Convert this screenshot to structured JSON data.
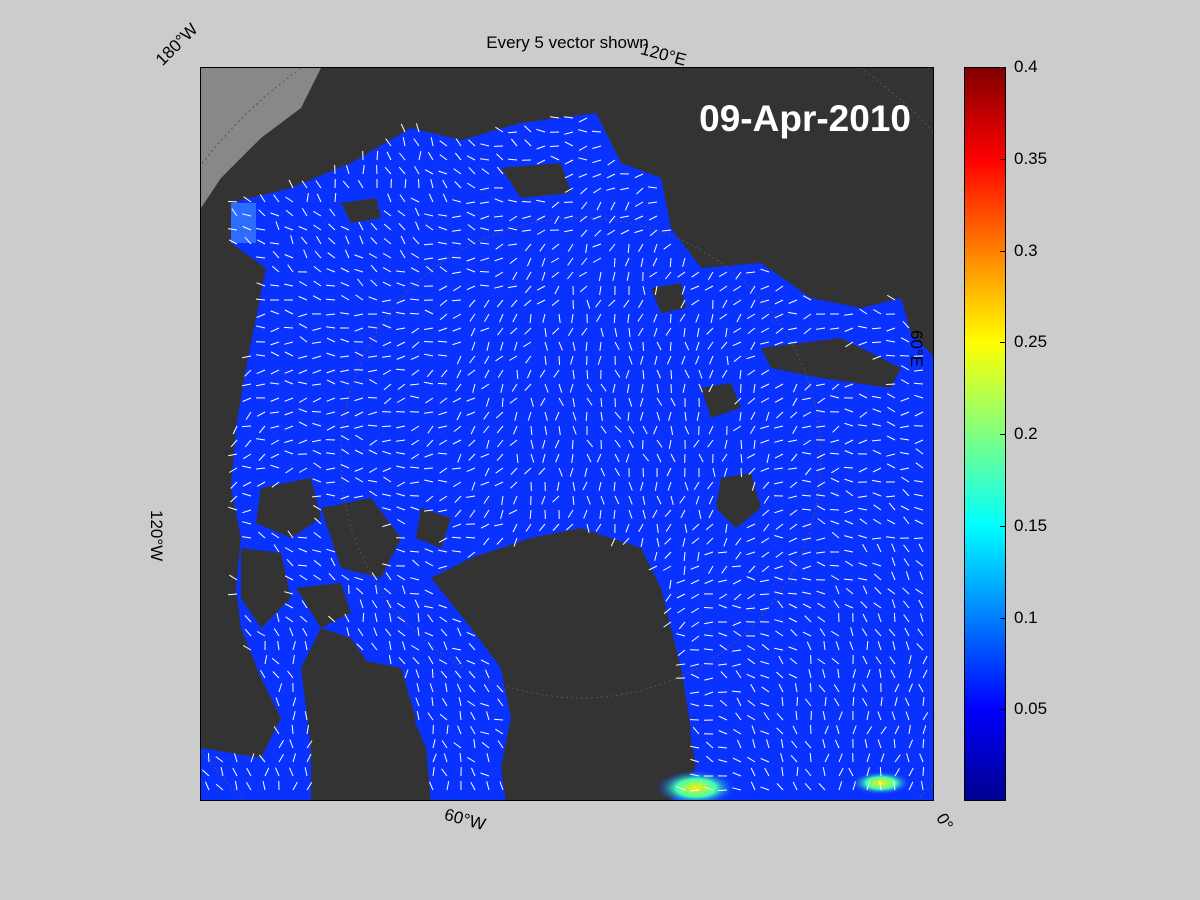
{
  "title": "Every 5 vector shown",
  "date": "09-Apr-2010",
  "labels": {
    "lon_180w": "180°W",
    "lon_120e": "120°E",
    "lon_60e": "60°E",
    "lon_120w": "120°W",
    "lon_60w": "60°W",
    "lon_0": "0°"
  },
  "colorbar": {
    "min": 0,
    "max": 0.4,
    "ticks": [
      "0.4",
      "0.35",
      "0.3",
      "0.25",
      "0.2",
      "0.15",
      "0.1",
      "0.05"
    ],
    "colormap": "jet"
  },
  "colors": {
    "background": "#cccccc",
    "land": "#333333",
    "ice": "#0a32ff",
    "vectors": "#ffffff"
  }
}
